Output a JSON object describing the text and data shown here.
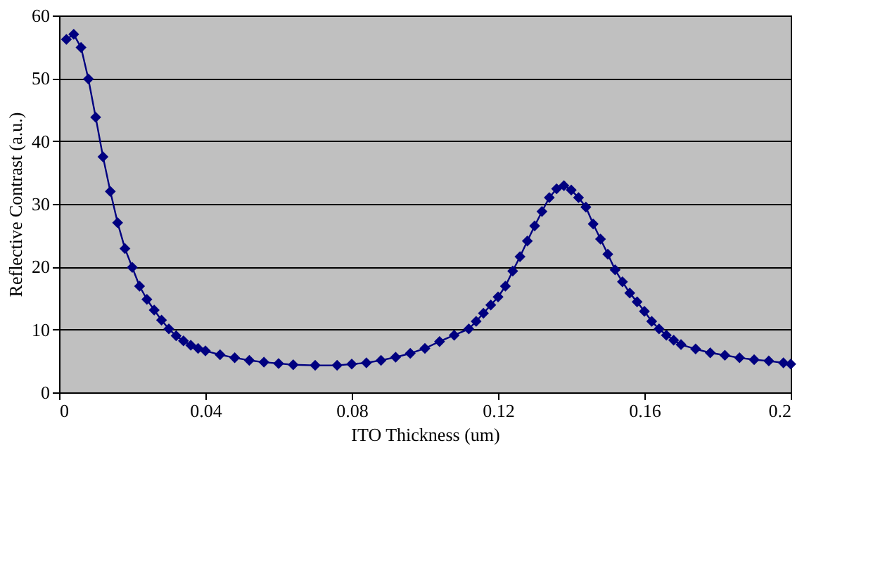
{
  "chart_data": {
    "type": "line",
    "xlabel": "ITO Thickness (um)",
    "ylabel": "Reflective Contrast (a.u.)",
    "x": [
      0.002,
      0.004,
      0.006,
      0.008,
      0.01,
      0.012,
      0.014,
      0.016,
      0.018,
      0.02,
      0.022,
      0.024,
      0.026,
      0.028,
      0.03,
      0.032,
      0.034,
      0.036,
      0.038,
      0.04,
      0.044,
      0.048,
      0.052,
      0.056,
      0.06,
      0.064,
      0.07,
      0.076,
      0.08,
      0.084,
      0.088,
      0.092,
      0.096,
      0.1,
      0.104,
      0.108,
      0.112,
      0.114,
      0.116,
      0.118,
      0.12,
      0.122,
      0.124,
      0.126,
      0.128,
      0.13,
      0.132,
      0.134,
      0.136,
      0.138,
      0.14,
      0.142,
      0.144,
      0.146,
      0.148,
      0.15,
      0.152,
      0.154,
      0.156,
      0.158,
      0.16,
      0.162,
      0.164,
      0.166,
      0.168,
      0.17,
      0.174,
      0.178,
      0.182,
      0.186,
      0.19,
      0.194,
      0.198,
      0.2
    ],
    "series": [
      {
        "color": "#000080",
        "values": [
          56.2,
          57.0,
          54.9,
          49.9,
          43.8,
          37.5,
          32.0,
          27.0,
          22.9,
          19.9,
          16.9,
          14.8,
          13.1,
          11.5,
          10.1,
          9.0,
          8.2,
          7.5,
          7.0,
          6.6,
          6.0,
          5.5,
          5.1,
          4.8,
          4.6,
          4.4,
          4.3,
          4.3,
          4.5,
          4.7,
          5.1,
          5.6,
          6.2,
          7.0,
          8.1,
          9.1,
          10.1,
          11.3,
          12.6,
          13.9,
          15.2,
          16.9,
          19.3,
          21.6,
          24.1,
          26.5,
          28.8,
          31.0,
          32.4,
          32.9,
          32.2,
          31.0,
          29.5,
          26.8,
          24.4,
          22.0,
          19.5,
          17.6,
          15.8,
          14.4,
          12.9,
          11.3,
          10.1,
          9.1,
          8.3,
          7.6,
          6.9,
          6.3,
          5.9,
          5.5,
          5.2,
          5.0,
          4.7,
          4.5
        ]
      }
    ],
    "xlim": [
      0,
      0.2
    ],
    "xticks": [
      0,
      0.04,
      0.08,
      0.12,
      0.16,
      0.2
    ],
    "ylim": [
      0,
      60
    ],
    "yticks": [
      0,
      10,
      20,
      30,
      40,
      50,
      60
    ],
    "grid": "y",
    "legend": false,
    "marker": "diamond",
    "line_style": "solid"
  }
}
